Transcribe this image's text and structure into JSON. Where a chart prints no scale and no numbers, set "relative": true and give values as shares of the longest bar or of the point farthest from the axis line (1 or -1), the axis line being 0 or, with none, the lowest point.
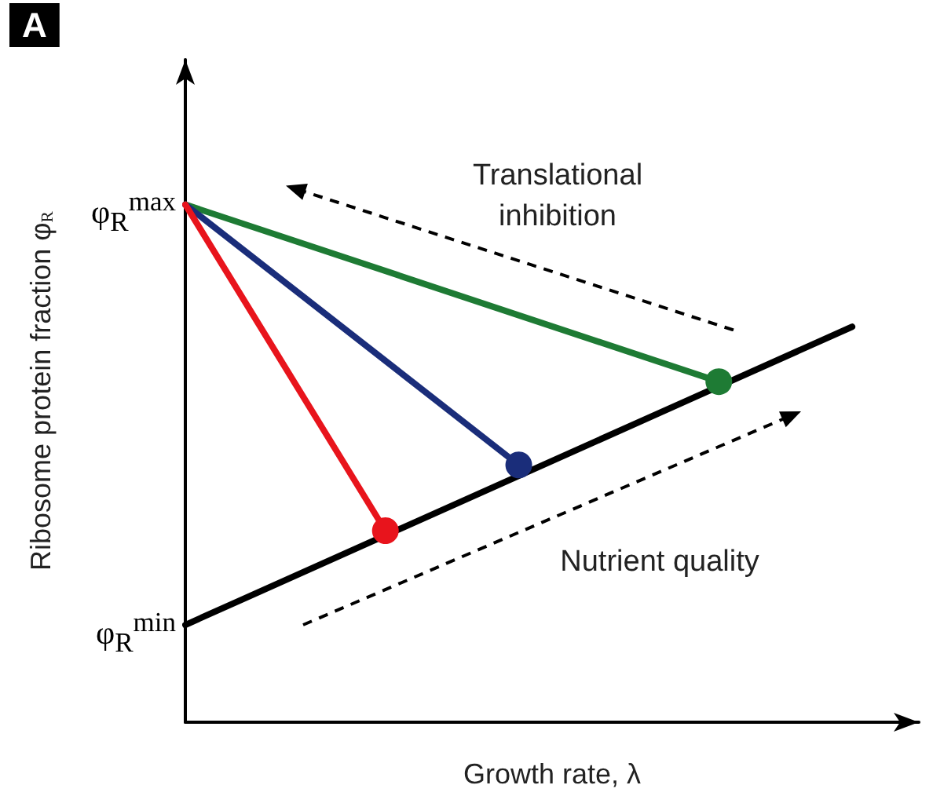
{
  "chart_data": {
    "type": "line",
    "title": "A",
    "xlabel": "Growth rate, λ",
    "ylabel": "Ribosome protein fraction φ$_{R}$",
    "relative": true,
    "grid": false,
    "marker": "none",
    "line_style": "solid",
    "categories": [
      null,
      null,
      null,
      null,
      null,
      null,
      null,
      null,
      null,
      null,
      null,
      null
    ],
    "series": [
      {
        "color": "#000000",
        "values": [
          0.188,
          null,
          null,
          null,
          null,
          null,
          null,
          null,
          null,
          null,
          0.764,
          null
        ]
      },
      {
        "color": "#1e7b34",
        "marker": "circle",
        "values": [
          1,
          null,
          null,
          null,
          null,
          null,
          null,
          null,
          0.658,
          null,
          null,
          null
        ]
      },
      {
        "color": "#1a2d7a",
        "marker": "circle",
        "values": [
          1,
          null,
          null,
          null,
          null,
          0.497,
          null,
          null,
          null,
          null,
          null,
          null
        ]
      },
      {
        "color": "#e8141c",
        "marker": "circle",
        "values": [
          1,
          null,
          null,
          0.37,
          null,
          null,
          null,
          null,
          null,
          null,
          null,
          null
        ]
      }
    ],
    "annotations": [
      "φ$_{R}$$^{max}$",
      "φ$_{R}$$^{min}$",
      "Translational\ninhibition",
      "Nutrient quality"
    ]
  }
}
